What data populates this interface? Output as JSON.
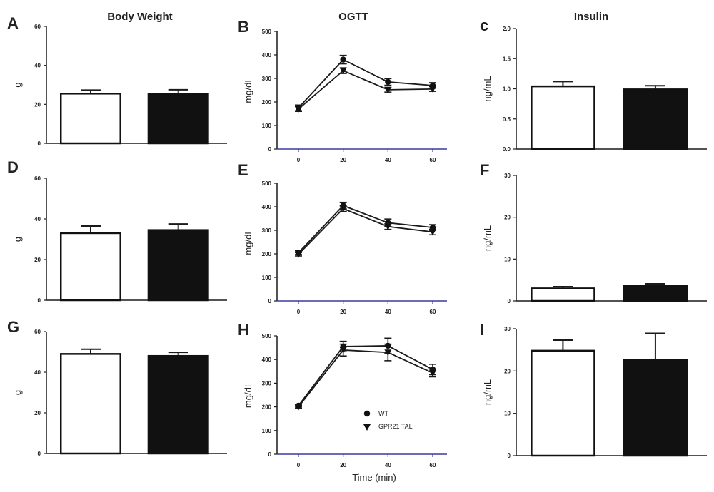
{
  "figure": {
    "column_titles": [
      "Body Weight",
      "OGTT",
      "Insulin"
    ],
    "legend": {
      "wt": "WT",
      "tal": "GPR21 TAL"
    },
    "x_title": "Time (min)",
    "colors": {
      "axis": "#1a1a1a",
      "x_axis_ogtt": "#3a3aa0",
      "wt_fill": "#ffffff",
      "tal_fill": "#111111"
    }
  },
  "chart_data": [
    {
      "id": "A",
      "panel": "A",
      "type": "bar",
      "ylabel": "g",
      "ylim": [
        0,
        60
      ],
      "yticks": [
        "0",
        "20",
        "40",
        "60"
      ],
      "series": [
        {
          "name": "WT",
          "value": 25.5,
          "error": 1.8
        },
        {
          "name": "GPR21 TAL",
          "value": 25.3,
          "error": 2.2
        }
      ]
    },
    {
      "id": "B",
      "panel": "B",
      "type": "line",
      "ylabel": "mg/dL",
      "ylim": [
        0,
        500
      ],
      "yticks": [
        "0",
        "100",
        "200",
        "300",
        "400",
        "500"
      ],
      "x": [
        0,
        20,
        40,
        60
      ],
      "xticks": [
        "0",
        "20",
        "40",
        "60"
      ],
      "series": [
        {
          "name": "WT",
          "values": [
            175,
            380,
            285,
            270
          ],
          "errors": [
            12,
            18,
            14,
            12
          ]
        },
        {
          "name": "GPR21 TAL",
          "values": [
            170,
            333,
            252,
            255
          ],
          "errors": [
            10,
            12,
            10,
            10
          ]
        }
      ]
    },
    {
      "id": "C",
      "panel": "c",
      "type": "bar",
      "ylabel": "ng/mL",
      "ylim": [
        0,
        2.0
      ],
      "yticks": [
        "0.0",
        "0.5",
        "1.0",
        "1.5",
        "2.0"
      ],
      "series": [
        {
          "name": "WT",
          "value": 1.04,
          "error": 0.08
        },
        {
          "name": "GPR21 TAL",
          "value": 0.99,
          "error": 0.06
        }
      ]
    },
    {
      "id": "D",
      "panel": "D",
      "type": "bar",
      "ylabel": "g",
      "ylim": [
        0,
        60
      ],
      "yticks": [
        "0",
        "20",
        "40",
        "60"
      ],
      "series": [
        {
          "name": "WT",
          "value": 33,
          "error": 3.5
        },
        {
          "name": "GPR21 TAL",
          "value": 34.5,
          "error": 3.0
        }
      ]
    },
    {
      "id": "E",
      "panel": "E",
      "type": "line",
      "ylabel": "mg/dL",
      "ylim": [
        0,
        500
      ],
      "yticks": [
        "0",
        "100",
        "200",
        "300",
        "400",
        "500"
      ],
      "x": [
        0,
        20,
        40,
        60
      ],
      "xticks": [
        "0",
        "20",
        "40",
        "60"
      ],
      "series": [
        {
          "name": "WT",
          "values": [
            205,
            405,
            332,
            312
          ],
          "errors": [
            8,
            14,
            16,
            12
          ]
        },
        {
          "name": "GPR21 TAL",
          "values": [
            198,
            392,
            316,
            293
          ],
          "errors": [
            7,
            12,
            12,
            12
          ]
        }
      ]
    },
    {
      "id": "F",
      "panel": "F",
      "type": "bar",
      "ylabel": "ng/mL",
      "ylim": [
        0,
        30
      ],
      "yticks": [
        "0",
        "10",
        "20",
        "30"
      ],
      "series": [
        {
          "name": "WT",
          "value": 3.0,
          "error": 0.4
        },
        {
          "name": "GPR21 TAL",
          "value": 3.6,
          "error": 0.5
        }
      ]
    },
    {
      "id": "G",
      "panel": "G",
      "type": "bar",
      "ylabel": "g",
      "ylim": [
        0,
        60
      ],
      "yticks": [
        "0",
        "20",
        "40",
        "60"
      ],
      "series": [
        {
          "name": "WT",
          "value": 49,
          "error": 2.3
        },
        {
          "name": "GPR21 TAL",
          "value": 48,
          "error": 1.8
        }
      ]
    },
    {
      "id": "H",
      "panel": "H",
      "type": "line",
      "ylabel": "mg/dL",
      "ylim": [
        0,
        500
      ],
      "yticks": [
        "0",
        "100",
        "200",
        "300",
        "400",
        "500"
      ],
      "x": [
        0,
        20,
        40,
        60
      ],
      "xticks": [
        "0",
        "20",
        "40",
        "60"
      ],
      "xlabel": "Time (min)",
      "legend": "bottom-center",
      "series": [
        {
          "name": "WT",
          "values": [
            205,
            455,
            458,
            358
          ],
          "errors": [
            6,
            22,
            32,
            22
          ]
        },
        {
          "name": "GPR21 TAL",
          "values": [
            200,
            440,
            430,
            343
          ],
          "errors": [
            6,
            25,
            35,
            16
          ]
        }
      ]
    },
    {
      "id": "I",
      "panel": "I",
      "type": "bar",
      "ylabel": "ng/mL",
      "ylim": [
        0,
        30
      ],
      "yticks": [
        "0",
        "10",
        "20",
        "30"
      ],
      "series": [
        {
          "name": "WT",
          "value": 24.8,
          "error": 2.5
        },
        {
          "name": "GPR21 TAL",
          "value": 22.6,
          "error": 6.3
        }
      ]
    }
  ]
}
